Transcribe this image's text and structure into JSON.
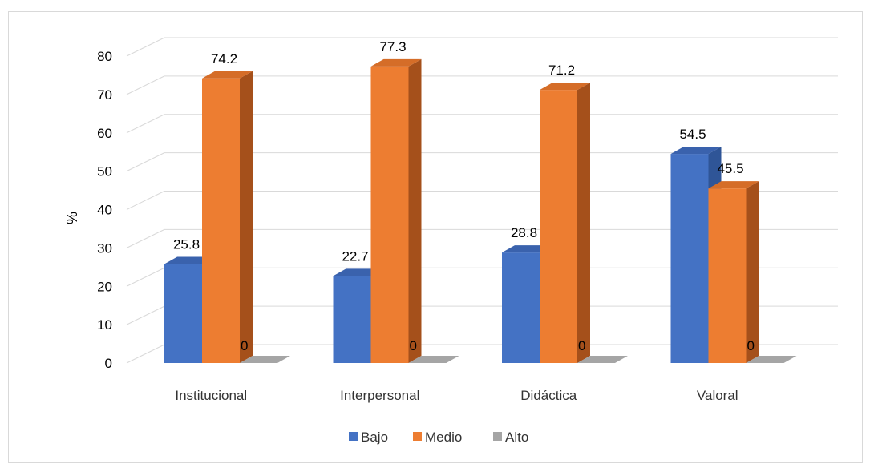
{
  "chart_data": {
    "type": "bar",
    "style": "3d-clustered-column",
    "categories": [
      "Institucional",
      "Interpersonal",
      "Didáctica",
      "Valoral"
    ],
    "series": [
      {
        "name": "Bajo",
        "values": [
          25.8,
          22.7,
          28.8,
          54.5
        ],
        "color": "#4472c4",
        "side_color": "#2f5597",
        "top_color": "#3a62ad"
      },
      {
        "name": "Medio",
        "values": [
          74.2,
          77.3,
          71.2,
          45.5
        ],
        "color": "#ed7d31",
        "side_color": "#a5501b",
        "top_color": "#d56d28"
      },
      {
        "name": "Alto",
        "values": [
          0,
          0,
          0,
          0
        ],
        "color": "#a5a5a5",
        "side_color": "#6e6e6e",
        "top_color": "#8c8c8c"
      }
    ],
    "data_labels": [
      [
        "25.8",
        "74.2",
        "0"
      ],
      [
        "22.7",
        "77.3",
        "0"
      ],
      [
        "28.8",
        "71.2",
        "0"
      ],
      [
        "54.5",
        "45.5",
        "0"
      ]
    ],
    "ylabel": "%",
    "xlabel": "",
    "title": "",
    "ylim": [
      0,
      80
    ],
    "yticks": [
      "0",
      "10",
      "20",
      "30",
      "40",
      "50",
      "60",
      "70",
      "80"
    ],
    "grid": true,
    "legend": "bottom"
  }
}
